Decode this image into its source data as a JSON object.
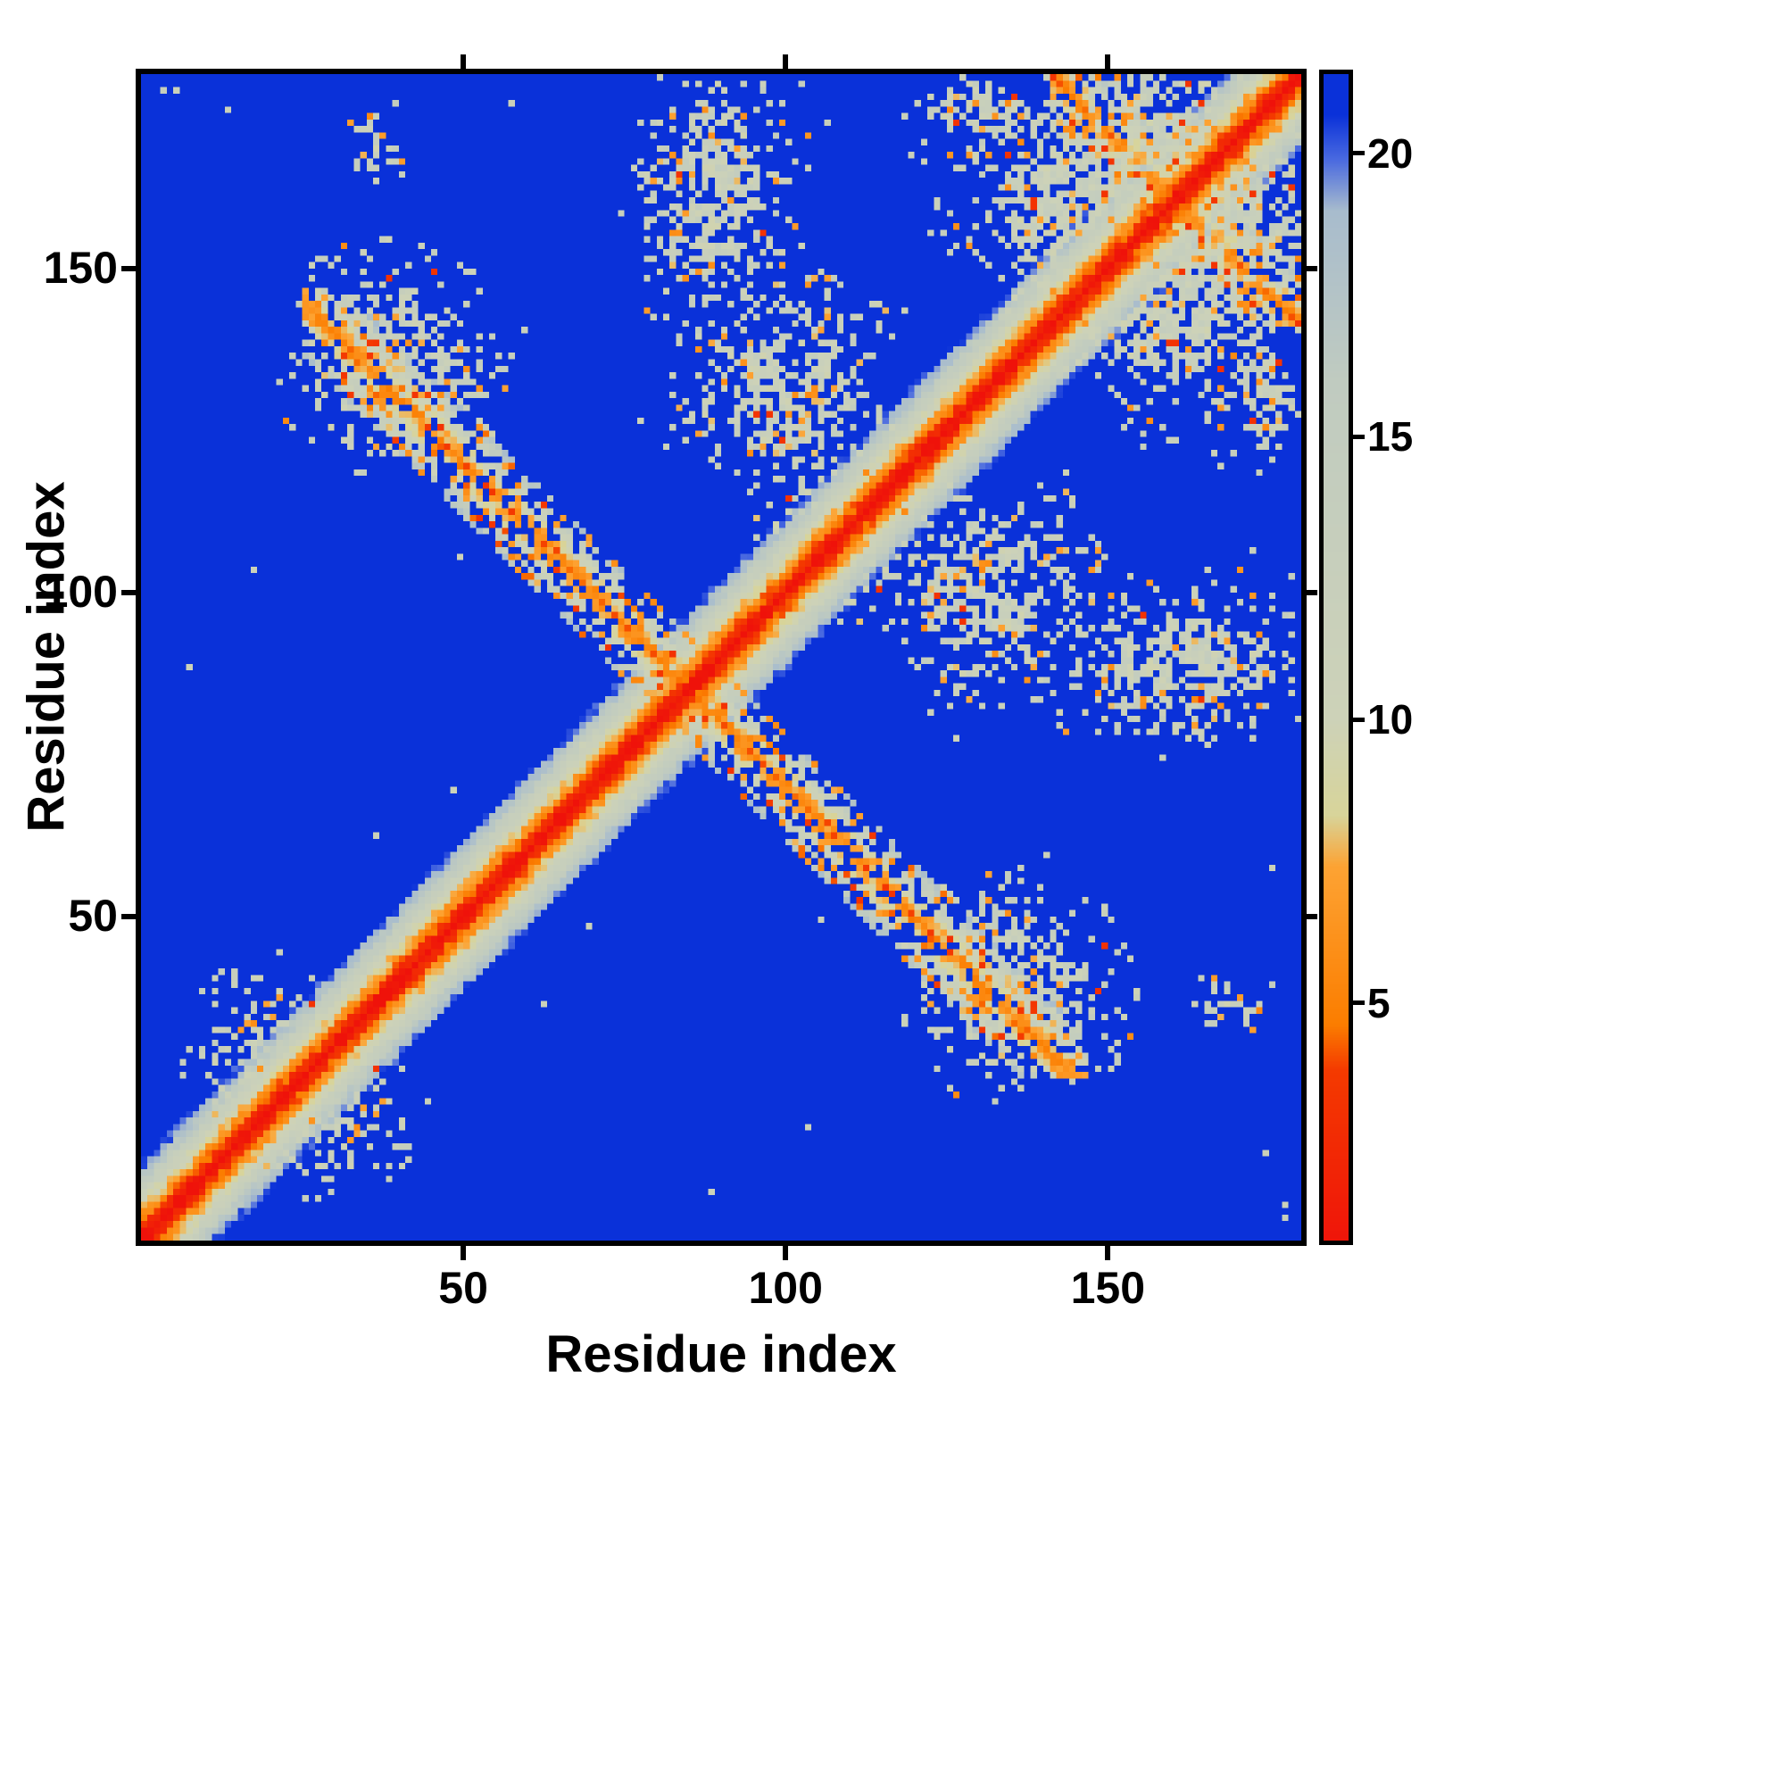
{
  "figure": {
    "background": "#ffffff",
    "frame_color": "#000000",
    "text_color": "#000000"
  },
  "chart_data": {
    "type": "heatmap",
    "title": "",
    "xlabel": "Residue index",
    "ylabel": "Residue index",
    "n_residues": 180,
    "x_range": [
      0,
      180
    ],
    "y_range": [
      0,
      180
    ],
    "x_ticks": [
      50,
      100,
      150
    ],
    "y_ticks": [
      50,
      100,
      150
    ],
    "grid": false,
    "legend_position": "colorbar-right",
    "colorbar": {
      "ticks": [
        5,
        10,
        15,
        20
      ],
      "range": [
        0.8,
        21.4
      ],
      "position": "right"
    },
    "colormap": [
      [
        0.0,
        "#ee0c0c"
      ],
      [
        3.8,
        "#f43a00"
      ],
      [
        4.6,
        "#fb7d00"
      ],
      [
        7.4,
        "#fda333"
      ],
      [
        8.3,
        "#d8d49a"
      ],
      [
        10.0,
        "#cdd2b8"
      ],
      [
        16.0,
        "#c0cbc0"
      ],
      [
        19.0,
        "#a8bccd"
      ],
      [
        19.9,
        "#4a6ae0"
      ],
      [
        20.7,
        "#0a31d9"
      ],
      [
        24.0,
        "#0a31d9"
      ]
    ],
    "pattern": {
      "far_value": 22.5,
      "backbone_diagonal": {
        "slope": 1.75,
        "noise": 2.6
      },
      "antiparallel_contacts": [
        {
          "center_sum": 169,
          "from": 25,
          "to": 146,
          "core": 4.6,
          "slope": 1.55,
          "halfwidth": 9,
          "gap": 0.22
        },
        {
          "center_sum": 320,
          "from": 141,
          "to": 180,
          "core": 4.6,
          "slope": 1.55,
          "halfwidth": 8,
          "gap": 0.25
        }
      ],
      "contact_clusters": [
        {
          "x": 89,
          "y": 162,
          "sx": 6,
          "sy": 11,
          "density": 0.85
        },
        {
          "x": 99,
          "y": 133,
          "sx": 9,
          "sy": 8,
          "density": 0.7
        },
        {
          "x": 37,
          "y": 135,
          "sx": 6,
          "sy": 8,
          "density": 0.85
        },
        {
          "x": 160,
          "y": 142,
          "sx": 11,
          "sy": 7,
          "density": 0.8
        },
        {
          "x": 156,
          "y": 166,
          "sx": 14,
          "sy": 9,
          "density": 0.85
        },
        {
          "x": 172,
          "y": 131,
          "sx": 5,
          "sy": 5,
          "density": 0.7
        },
        {
          "x": 126,
          "y": 100,
          "sx": 9,
          "sy": 6,
          "density": 0.6
        },
        {
          "x": 133,
          "y": 41,
          "sx": 8,
          "sy": 8,
          "density": 0.55
        },
        {
          "x": 169,
          "y": 36,
          "sx": 3,
          "sy": 2,
          "density": 0.6
        },
        {
          "x": 30,
          "y": 17,
          "sx": 6,
          "sy": 5,
          "density": 0.5
        }
      ],
      "sparse_dots": {
        "pale_prob": 0.0015,
        "orange_prob": 0.00028
      }
    }
  }
}
